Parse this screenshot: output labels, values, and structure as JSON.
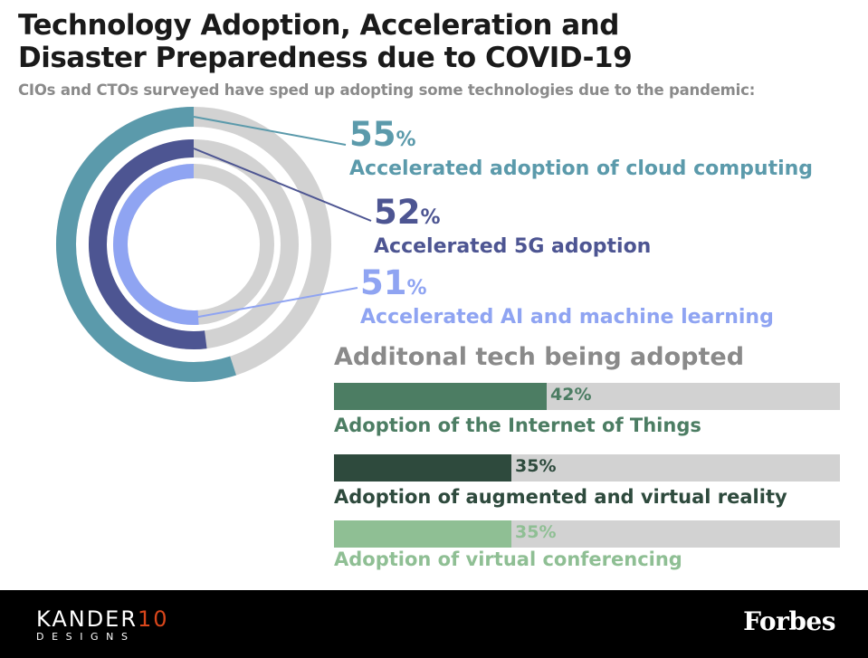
{
  "header": {
    "title_line1": "Technology Adoption, Acceleration and",
    "title_line2": "Disaster Preparedness due to COVID-19",
    "subtitle": "CIOs and CTOs surveyed have sped up adopting some technologies due to the pandemic:"
  },
  "chart_data": [
    {
      "type": "radial_bar",
      "max": 100,
      "series": [
        {
          "value": 55,
          "pct_label": "55",
          "unit": "%",
          "label": "Accelerated adoption of cloud computing",
          "color": "#5b9aab"
        },
        {
          "value": 52,
          "pct_label": "52",
          "unit": "%",
          "label": "Accelerated 5G adoption",
          "color": "#4d5592"
        },
        {
          "value": 51,
          "pct_label": "51",
          "unit": "%",
          "label": "Accelerated AI and machine learning",
          "color": "#8fa4f2"
        }
      ],
      "track_color": "#d2d2d2"
    },
    {
      "type": "bar",
      "title": "Additonal tech being adopted",
      "max": 100,
      "series": [
        {
          "value": 42,
          "value_label": "42%",
          "label": "Adoption of the Internet of Things",
          "color": "#4c7d63"
        },
        {
          "value": 35,
          "value_label": "35%",
          "label": "Adoption of augmented and virtual reality",
          "color": "#2e4a3d"
        },
        {
          "value": 35,
          "value_label": "35%",
          "label": "Adoption of virtual conferencing",
          "color": "#8fbf94"
        }
      ],
      "track_color": "#d2d2d2"
    }
  ],
  "footer": {
    "brand_left_word": "KANDER",
    "brand_left_num": "10",
    "brand_left_sub": "DESIGNS",
    "brand_right": "Forbes"
  }
}
